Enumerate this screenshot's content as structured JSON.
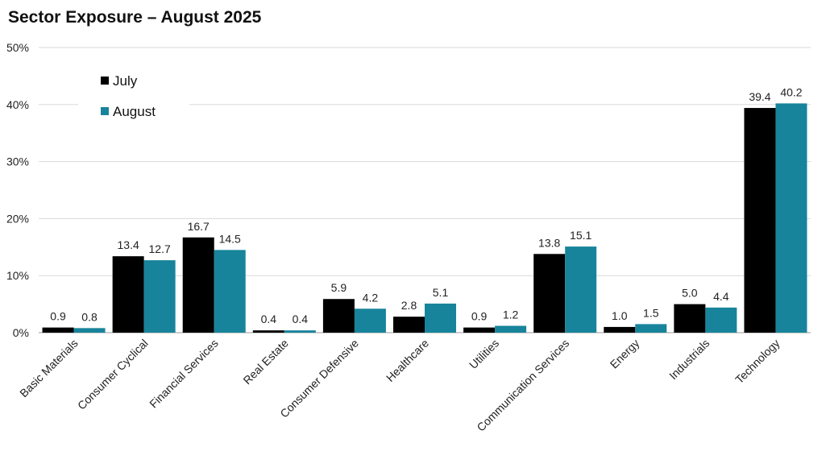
{
  "chart_data": {
    "type": "bar",
    "title": "Sector Exposure – August 2025",
    "categories": [
      "Basic Materials",
      "Consumer Cyclical",
      "Financial Services",
      "Real Estate",
      "Consumer Defensive",
      "Healthcare",
      "Utilities",
      "Communication Services",
      "Energy",
      "Industrials",
      "Technology"
    ],
    "series": [
      {
        "name": "July",
        "color": "#000000",
        "values": [
          0.9,
          13.4,
          16.7,
          0.4,
          5.9,
          2.8,
          0.9,
          13.8,
          1.0,
          5.0,
          39.4
        ]
      },
      {
        "name": "August",
        "color": "#17849b",
        "values": [
          0.8,
          12.7,
          14.5,
          0.4,
          4.2,
          5.1,
          1.2,
          15.1,
          1.5,
          4.4,
          40.2
        ]
      }
    ],
    "data_labels": [
      [
        "0.9",
        "13.4",
        "16.7",
        "0.4",
        "5.9",
        "2.8",
        "0.9",
        "13.8",
        "1.0",
        "5.0",
        "39.4"
      ],
      [
        "0.8",
        "12.7",
        "14.5",
        "0.4",
        "4.2",
        "5.1",
        "1.2",
        "15.1",
        "1.5",
        "4.4",
        "40.2"
      ]
    ],
    "ylim": [
      0,
      50
    ],
    "yticks": [
      0,
      10,
      20,
      30,
      40,
      50
    ],
    "ytick_labels": [
      "0%",
      "10%",
      "20%",
      "30%",
      "40%",
      "50%"
    ],
    "xlabel": "",
    "ylabel": "",
    "grid": true,
    "legend_position": "top-left"
  }
}
